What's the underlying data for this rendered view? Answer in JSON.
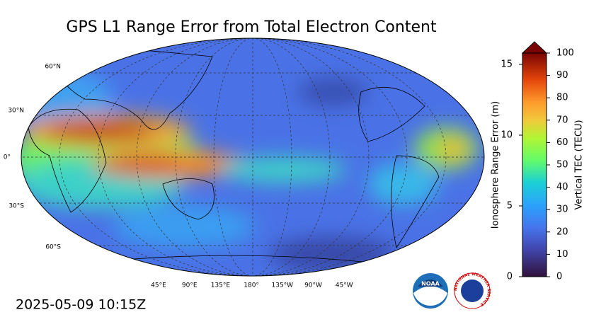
{
  "title": "GPS L1 Range Error from Total Electron Content",
  "timestamp": "2025-05-09 10:15Z",
  "map": {
    "lat_labels": [
      "60°N",
      "30°N",
      "0°",
      "30°S",
      "60°S"
    ],
    "lon_labels": [
      "45°E",
      "90°E",
      "135°E",
      "180°",
      "135°W",
      "90°W",
      "45°W"
    ]
  },
  "colorbar": {
    "left_label": "Ionosphere Range Error (m)",
    "left_lim": [
      0,
      15.8
    ],
    "left_ticks": [
      0,
      5,
      10,
      15
    ],
    "right_label": "Vertical TEC (TECU)",
    "right_lim": [
      0,
      100
    ],
    "right_ticks": [
      0,
      10,
      20,
      30,
      40,
      50,
      60,
      70,
      80,
      90,
      100
    ]
  },
  "logos": {
    "noaa": "NOAA",
    "nws": "NATIONAL WEATHER SERVICE"
  }
}
